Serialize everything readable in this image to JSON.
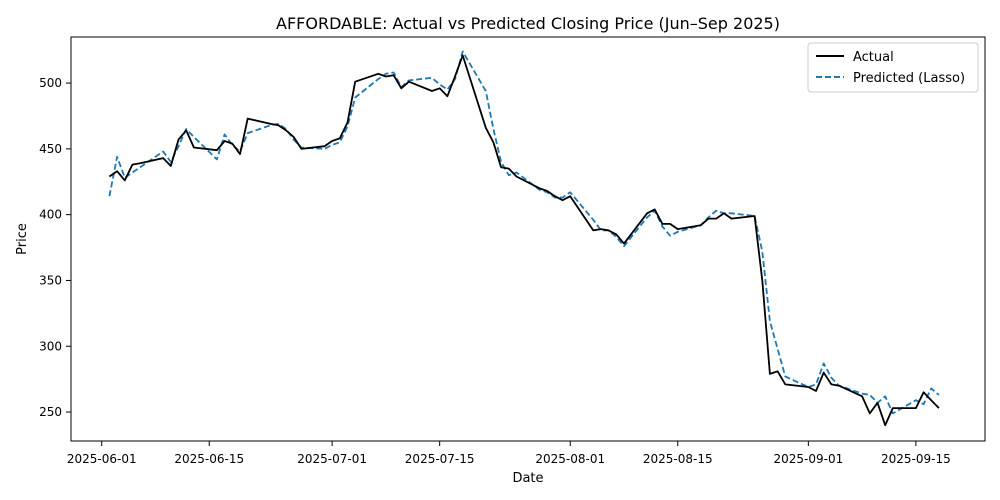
{
  "chart_data": {
    "type": "line",
    "title": "AFFORDABLE: Actual vs Predicted Closing Price (Jun–Sep 2025)",
    "xlabel": "Date",
    "ylabel": "Price",
    "x_ticks": [
      "2025-06-01",
      "2025-06-15",
      "2025-07-01",
      "2025-07-15",
      "2025-08-01",
      "2025-08-15",
      "2025-09-01",
      "2025-09-15"
    ],
    "y_ticks": [
      250,
      300,
      350,
      400,
      450,
      500
    ],
    "xlim": [
      "2025-05-28",
      "2025-09-24"
    ],
    "ylim": [
      228,
      535
    ],
    "grid": false,
    "legend_position": "top-right",
    "colors": {
      "actual": "#000000",
      "predicted": "#1f77b4"
    },
    "dates": [
      "2025-06-02",
      "2025-06-03",
      "2025-06-04",
      "2025-06-05",
      "2025-06-06",
      "2025-06-09",
      "2025-06-10",
      "2025-06-11",
      "2025-06-12",
      "2025-06-13",
      "2025-06-16",
      "2025-06-17",
      "2025-06-18",
      "2025-06-19",
      "2025-06-20",
      "2025-06-23",
      "2025-06-24",
      "2025-06-25",
      "2025-06-26",
      "2025-06-27",
      "2025-06-30",
      "2025-07-01",
      "2025-07-02",
      "2025-07-03",
      "2025-07-04",
      "2025-07-07",
      "2025-07-08",
      "2025-07-09",
      "2025-07-10",
      "2025-07-11",
      "2025-07-14",
      "2025-07-15",
      "2025-07-16",
      "2025-07-17",
      "2025-07-18",
      "2025-07-21",
      "2025-07-22",
      "2025-07-23",
      "2025-07-24",
      "2025-07-25",
      "2025-07-28",
      "2025-07-29",
      "2025-07-30",
      "2025-07-31",
      "2025-08-01",
      "2025-08-04",
      "2025-08-05",
      "2025-08-06",
      "2025-08-07",
      "2025-08-08",
      "2025-08-11",
      "2025-08-12",
      "2025-08-13",
      "2025-08-14",
      "2025-08-15",
      "2025-08-18",
      "2025-08-19",
      "2025-08-20",
      "2025-08-21",
      "2025-08-22",
      "2025-08-25",
      "2025-08-26",
      "2025-08-27",
      "2025-08-28",
      "2025-08-29",
      "2025-09-01",
      "2025-09-02",
      "2025-09-03",
      "2025-09-04",
      "2025-09-05",
      "2025-09-08",
      "2025-09-09",
      "2025-09-10",
      "2025-09-11",
      "2025-09-12",
      "2025-09-15",
      "2025-09-16",
      "2025-09-17",
      "2025-09-18"
    ],
    "series": [
      {
        "name": "Actual",
        "style": "solid",
        "values": [
          429,
          433,
          426,
          438,
          439,
          443,
          437,
          457,
          464,
          451,
          449,
          456,
          454,
          446,
          473,
          469,
          468,
          464,
          459,
          450,
          452,
          456,
          458,
          470,
          501,
          507,
          505,
          506,
          496,
          501,
          494,
          496,
          490,
          505,
          521,
          466,
          455,
          436,
          435,
          429,
          420,
          418,
          414,
          411,
          414,
          388,
          389,
          388,
          385,
          378,
          401,
          404,
          393,
          393,
          389,
          392,
          397,
          397,
          401,
          397,
          399,
          350,
          279,
          281,
          271,
          269,
          266,
          280,
          271,
          270,
          262,
          249,
          257,
          240,
          253,
          253,
          265,
          259,
          253
        ]
      },
      {
        "name": "Predicted (Lasso)",
        "style": "dashed",
        "values": [
          414,
          444,
          428,
          432,
          436,
          448,
          440,
          452,
          465,
          459,
          442,
          461,
          453,
          448,
          462,
          468,
          469,
          465,
          457,
          451,
          450,
          453,
          455,
          467,
          489,
          503,
          507,
          508,
          497,
          502,
          504,
          499,
          495,
          503,
          524,
          494,
          465,
          440,
          430,
          432,
          419,
          417,
          413,
          413,
          417,
          396,
          388,
          388,
          383,
          376,
          398,
          403,
          391,
          384,
          387,
          392,
          398,
          403,
          401,
          401,
          399,
          372,
          319,
          298,
          277,
          269,
          271,
          287,
          276,
          270,
          264,
          263,
          257,
          262,
          249,
          259,
          256,
          268,
          263
        ]
      }
    ]
  }
}
